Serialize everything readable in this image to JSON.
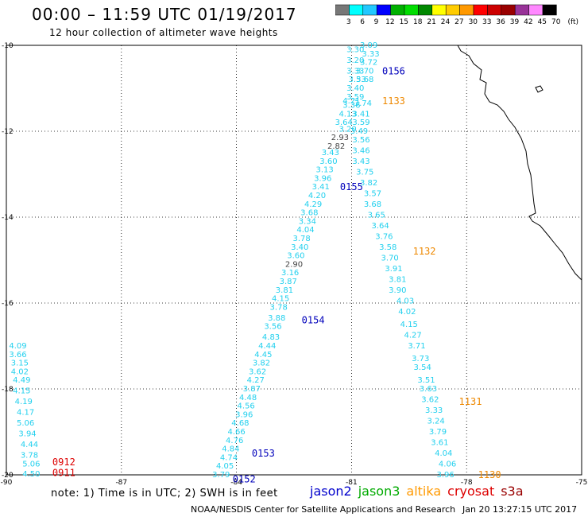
{
  "header": {
    "title": "00:00 – 11:59 UTC 01/19/2017",
    "subtitle": "12 hour collection of altimeter wave heights"
  },
  "color_scale": {
    "unit": "(ft)",
    "ticks": [
      "3",
      "6",
      "9",
      "12",
      "15",
      "18",
      "21",
      "24",
      "27",
      "30",
      "33",
      "36",
      "39",
      "42",
      "45",
      "70"
    ],
    "colors": [
      "#777777",
      "#00ffff",
      "#22c8ff",
      "#0000ff",
      "#00b000",
      "#00dd00",
      "#008800",
      "#ffff00",
      "#ffcc00",
      "#ff9900",
      "#ff0000",
      "#cc0000",
      "#990000",
      "#993399",
      "#ff88ff",
      "#000000"
    ]
  },
  "axes": {
    "lat_labels": [
      {
        "lat": -10,
        "text": "-10"
      },
      {
        "lat": -12,
        "text": "-12"
      },
      {
        "lat": -14,
        "text": "-14"
      },
      {
        "lat": -16,
        "text": "-16"
      },
      {
        "lat": -18,
        "text": "-18"
      },
      {
        "lat": -20,
        "text": "-20"
      }
    ],
    "lon_labels": [
      {
        "lon": -90,
        "text": "-90"
      },
      {
        "lon": -87,
        "text": "-87"
      },
      {
        "lon": -84,
        "text": "-84"
      },
      {
        "lon": -81,
        "text": "-81"
      },
      {
        "lon": -78,
        "text": "-78"
      },
      {
        "lon": -75,
        "text": "-75"
      }
    ],
    "lon_range": [
      -90,
      -75
    ],
    "lat_range": [
      -20,
      -10
    ]
  },
  "tracks": [
    {
      "satellite": "jason2",
      "color": "#0000bb",
      "time_labels": [
        {
          "text": "0156",
          "lon": -80.2,
          "lat": -10.6
        },
        {
          "text": "0155",
          "lon": -81.3,
          "lat": -13.3
        },
        {
          "text": "0154",
          "lon": -82.3,
          "lat": -16.4
        },
        {
          "text": "0153",
          "lon": -83.6,
          "lat": -19.5
        },
        {
          "text": "0152",
          "lon": -84.1,
          "lat": -20.1
        }
      ],
      "points": [
        {
          "v": "3.09",
          "lon": -80.55,
          "lat": -10.0
        },
        {
          "v": "3.30",
          "lon": -80.9,
          "lat": -10.1
        },
        {
          "v": "3.33",
          "lon": -80.5,
          "lat": -10.2
        },
        {
          "v": "3.20",
          "lon": -80.9,
          "lat": -10.35
        },
        {
          "v": "3.72",
          "lon": -80.55,
          "lat": -10.4
        },
        {
          "v": "3.33",
          "lon": -80.9,
          "lat": -10.6
        },
        {
          "v": "3.70",
          "lon": -80.65,
          "lat": -10.6
        },
        {
          "v": "3.53",
          "lon": -80.85,
          "lat": -10.8
        },
        {
          "v": "3.68",
          "lon": -80.65,
          "lat": -10.8
        },
        {
          "v": "3.40",
          "lon": -80.9,
          "lat": -11.0
        },
        {
          "v": "3.59",
          "lon": -80.9,
          "lat": -11.2
        },
        {
          "v": "4.21",
          "lon": -81.0,
          "lat": -11.3
        },
        {
          "v": "3.74",
          "lon": -80.7,
          "lat": -11.35
        },
        {
          "v": "3.36",
          "lon": -81.0,
          "lat": -11.4
        },
        {
          "v": "3.41",
          "lon": -80.75,
          "lat": -11.6
        },
        {
          "v": "4.13",
          "lon": -81.1,
          "lat": -11.6
        },
        {
          "v": "3.59",
          "lon": -80.75,
          "lat": -11.8
        },
        {
          "v": "3.64",
          "lon": -81.2,
          "lat": -11.8
        },
        {
          "v": "3.20",
          "lon": -81.1,
          "lat": -11.95
        },
        {
          "v": "3.49",
          "lon": -80.8,
          "lat": -12.0
        },
        {
          "v": "2.93",
          "lon": -81.3,
          "lat": -12.15
        },
        {
          "v": "3.56",
          "lon": -80.75,
          "lat": -12.2
        },
        {
          "v": "2.82",
          "lon": -81.4,
          "lat": -12.35
        },
        {
          "v": "3.46",
          "lon": -80.75,
          "lat": -12.45
        },
        {
          "v": "3.43",
          "lon": -81.55,
          "lat": -12.5
        },
        {
          "v": "3.43",
          "lon": -80.75,
          "lat": -12.7
        },
        {
          "v": "3.60",
          "lon": -81.6,
          "lat": -12.7
        },
        {
          "v": "3.13",
          "lon": -81.7,
          "lat": -12.9
        },
        {
          "v": "3.75",
          "lon": -80.65,
          "lat": -12.95
        },
        {
          "v": "3.96",
          "lon": -81.75,
          "lat": -13.1
        },
        {
          "v": "3.82",
          "lon": -80.55,
          "lat": -13.2
        },
        {
          "v": "3.41",
          "lon": -81.8,
          "lat": -13.3
        },
        {
          "v": "3.57",
          "lon": -80.45,
          "lat": -13.45
        },
        {
          "v": "4.20",
          "lon": -81.9,
          "lat": -13.5
        },
        {
          "v": "3.68",
          "lon": -80.45,
          "lat": -13.7
        },
        {
          "v": "4.29",
          "lon": -82.0,
          "lat": -13.7
        },
        {
          "v": "3.68",
          "lon": -82.1,
          "lat": -13.9
        },
        {
          "v": "3.65",
          "lon": -80.35,
          "lat": -13.95
        },
        {
          "v": "3.34",
          "lon": -82.15,
          "lat": -14.1
        },
        {
          "v": "3.64",
          "lon": -80.25,
          "lat": -14.2
        },
        {
          "v": "4.04",
          "lon": -82.2,
          "lat": -14.3
        },
        {
          "v": "3.76",
          "lon": -80.15,
          "lat": -14.45
        },
        {
          "v": "3.78",
          "lon": -82.3,
          "lat": -14.5
        },
        {
          "v": "3.58",
          "lon": -80.05,
          "lat": -14.7
        },
        {
          "v": "3.40",
          "lon": -82.35,
          "lat": -14.7
        },
        {
          "v": "3.60",
          "lon": -82.45,
          "lat": -14.9
        },
        {
          "v": "3.70",
          "lon": -80.0,
          "lat": -14.95
        },
        {
          "v": "2.90",
          "lon": -82.5,
          "lat": -15.1
        },
        {
          "v": "3.91",
          "lon": -79.9,
          "lat": -15.2
        },
        {
          "v": "3.16",
          "lon": -82.6,
          "lat": -15.3
        },
        {
          "v": "3.81",
          "lon": -79.8,
          "lat": -15.45
        },
        {
          "v": "3.87",
          "lon": -82.65,
          "lat": -15.5
        },
        {
          "v": "3.90",
          "lon": -79.8,
          "lat": -15.7
        },
        {
          "v": "3.81",
          "lon": -82.75,
          "lat": -15.7
        },
        {
          "v": "4.15",
          "lon": -82.85,
          "lat": -15.9
        },
        {
          "v": "4.03",
          "lon": -79.6,
          "lat": -15.95
        },
        {
          "v": "3.78",
          "lon": -82.9,
          "lat": -16.1
        },
        {
          "v": "4.02",
          "lon": -79.55,
          "lat": -16.2
        },
        {
          "v": "3.88",
          "lon": -82.95,
          "lat": -16.35
        },
        {
          "v": "4.15",
          "lon": -79.5,
          "lat": -16.5
        },
        {
          "v": "3.56",
          "lon": -83.05,
          "lat": -16.55
        },
        {
          "v": "4.27",
          "lon": -79.4,
          "lat": -16.75
        },
        {
          "v": "4.83",
          "lon": -83.1,
          "lat": -16.8
        },
        {
          "v": "3.71",
          "lon": -79.3,
          "lat": -17.0
        },
        {
          "v": "4.44",
          "lon": -83.2,
          "lat": -17.0
        },
        {
          "v": "4.45",
          "lon": -83.3,
          "lat": -17.2
        },
        {
          "v": "3.73",
          "lon": -79.2,
          "lat": -17.3
        },
        {
          "v": "3.82",
          "lon": -83.35,
          "lat": -17.4
        },
        {
          "v": "3.54",
          "lon": -79.15,
          "lat": -17.5
        },
        {
          "v": "3.62",
          "lon": -83.45,
          "lat": -17.6
        },
        {
          "v": "3.51",
          "lon": -79.05,
          "lat": -17.8
        },
        {
          "v": "4.27",
          "lon": -83.5,
          "lat": -17.8
        },
        {
          "v": "3.63",
          "lon": -79.0,
          "lat": -18.0
        },
        {
          "v": "3.87",
          "lon": -83.6,
          "lat": -18.0
        },
        {
          "v": "4.48",
          "lon": -83.7,
          "lat": -18.2
        },
        {
          "v": "3.62",
          "lon": -78.95,
          "lat": -18.25
        },
        {
          "v": "4.56",
          "lon": -83.75,
          "lat": -18.4
        },
        {
          "v": "3.33",
          "lon": -78.85,
          "lat": -18.5
        },
        {
          "v": "3.96",
          "lon": -83.8,
          "lat": -18.6
        },
        {
          "v": "3.24",
          "lon": -78.8,
          "lat": -18.75
        },
        {
          "v": "4.68",
          "lon": -83.9,
          "lat": -18.8
        },
        {
          "v": "3.79",
          "lon": -78.75,
          "lat": -19.0
        },
        {
          "v": "4.66",
          "lon": -84.0,
          "lat": -19.0
        },
        {
          "v": "4.76",
          "lon": -84.05,
          "lat": -19.2
        },
        {
          "v": "3.61",
          "lon": -78.7,
          "lat": -19.25
        },
        {
          "v": "4.84",
          "lon": -84.15,
          "lat": -19.4
        },
        {
          "v": "4.04",
          "lon": -78.6,
          "lat": -19.5
        },
        {
          "v": "4.74",
          "lon": -84.2,
          "lat": -19.6
        },
        {
          "v": "4.06",
          "lon": -78.5,
          "lat": -19.75
        },
        {
          "v": "4.05",
          "lon": -84.3,
          "lat": -19.8
        },
        {
          "v": "3.79",
          "lon": -84.4,
          "lat": -20.0
        },
        {
          "v": "3.96",
          "lon": -78.55,
          "lat": -20.0
        }
      ]
    },
    {
      "satellite": "altika",
      "color": "#ee8800",
      "time_labels": [
        {
          "text": "1133",
          "lon": -80.2,
          "lat": -11.3
        },
        {
          "text": "1132",
          "lon": -79.4,
          "lat": -14.8
        },
        {
          "text": "1131",
          "lon": -78.2,
          "lat": -18.3
        },
        {
          "text": "1130",
          "lon": -77.7,
          "lat": -20.0
        }
      ],
      "points": []
    },
    {
      "satellite": "cryosat",
      "color": "#dd0000",
      "time_labels": [
        {
          "text": "0912",
          "lon": -88.8,
          "lat": -19.7
        },
        {
          "text": "0911",
          "lon": -88.8,
          "lat": -19.95
        }
      ],
      "points": [
        {
          "v": "4.09",
          "lon": -89.7,
          "lat": -17.0
        },
        {
          "v": "3.66",
          "lon": -89.7,
          "lat": -17.2
        },
        {
          "v": "3.15",
          "lon": -89.65,
          "lat": -17.4
        },
        {
          "v": "4.02",
          "lon": -89.65,
          "lat": -17.6
        },
        {
          "v": "4.49",
          "lon": -89.6,
          "lat": -17.8
        },
        {
          "v": "4.15",
          "lon": -89.6,
          "lat": -18.05
        },
        {
          "v": "4.19",
          "lon": -89.55,
          "lat": -18.3
        },
        {
          "v": "4.17",
          "lon": -89.5,
          "lat": -18.55
        },
        {
          "v": "5.06",
          "lon": -89.5,
          "lat": -18.8
        },
        {
          "v": "3.94",
          "lon": -89.45,
          "lat": -19.05
        },
        {
          "v": "4.44",
          "lon": -89.4,
          "lat": -19.3
        },
        {
          "v": "3.78",
          "lon": -89.4,
          "lat": -19.55
        },
        {
          "v": "5.06",
          "lon": -89.35,
          "lat": -19.75
        },
        {
          "v": "4.50",
          "lon": -89.35,
          "lat": -19.98
        }
      ]
    }
  ],
  "footer": {
    "note": "note: 1) Time is in UTC; 2) SWH is in feet",
    "legend": [
      {
        "label": "jason2",
        "color": "#0000cc"
      },
      {
        "label": "jason3",
        "color": "#00aa00"
      },
      {
        "label": "altika",
        "color": "#ff9900"
      },
      {
        "label": "cryosat",
        "color": "#dd0000"
      },
      {
        "label": "s3a",
        "color": "#990000"
      }
    ],
    "credit": "NOAA/NESDIS Center for Satellite Applications and Research",
    "timestamp": "Jan 20 13:27:15 UTC 2017"
  },
  "value_color": "#22d0ee",
  "low_value_color": "#444444"
}
